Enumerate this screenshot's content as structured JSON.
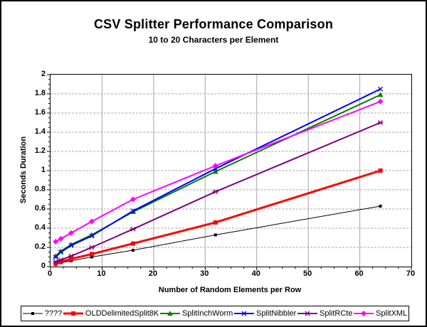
{
  "chart_data": {
    "type": "line",
    "title": "CSV Splitter Performance Comparison",
    "subtitle": "10 to 20 Characters per Element",
    "xlabel": "Number of Random Elements per Row",
    "ylabel": "Seconds Duration",
    "xlim": [
      0,
      70
    ],
    "ylim": [
      0,
      2
    ],
    "x_ticks": [
      0,
      10,
      20,
      30,
      40,
      50,
      60,
      70
    ],
    "x_tick_labels": [
      "0",
      "10",
      "20",
      "30",
      "40",
      "50",
      "60",
      "70"
    ],
    "y_ticks": [
      0,
      0.2,
      0.4,
      0.6,
      0.8,
      1,
      1.2,
      1.4,
      1.6,
      1.8,
      2
    ],
    "y_tick_labels": [
      "0",
      "0.2",
      "0.4",
      "0.6",
      "0.8",
      "1",
      "1.2",
      "1.4",
      "1.6",
      "1.8",
      "2"
    ],
    "x_minor_step": 2.5,
    "y_minor_step": 0.05,
    "grid": true,
    "grid_color": "#a6a6a6",
    "legend_position": "bottom",
    "x": [
      1,
      2,
      4,
      8,
      16,
      32,
      64
    ],
    "series": [
      {
        "name": "????",
        "color": "#000000",
        "marker": "square-small",
        "line_width": 1,
        "values": [
          0.02,
          0.04,
          0.06,
          0.1,
          0.17,
          0.33,
          0.63
        ]
      },
      {
        "name": "OLDDelimitedSplit8K",
        "color": "#ff0000",
        "marker": "square",
        "line_width": 3,
        "values": [
          0.03,
          0.05,
          0.08,
          0.13,
          0.24,
          0.46,
          1.0
        ]
      },
      {
        "name": "SplitInchWorm",
        "color": "#008000",
        "marker": "triangle",
        "line_width": 2,
        "values": [
          0.11,
          0.16,
          0.23,
          0.33,
          0.57,
          0.99,
          1.79
        ]
      },
      {
        "name": "SplitNibbler",
        "color": "#0000ff",
        "marker": "x",
        "line_width": 2,
        "values": [
          0.1,
          0.15,
          0.22,
          0.32,
          0.58,
          1.02,
          1.85
        ]
      },
      {
        "name": "SplitRCte",
        "color": "#800080",
        "marker": "asterisk",
        "line_width": 2,
        "values": [
          0.05,
          0.07,
          0.11,
          0.2,
          0.39,
          0.78,
          1.5
        ]
      },
      {
        "name": "SplitXML",
        "color": "#ff00ff",
        "marker": "diamond",
        "line_width": 2,
        "values": [
          0.26,
          0.29,
          0.35,
          0.47,
          0.7,
          1.05,
          1.72
        ]
      }
    ]
  }
}
